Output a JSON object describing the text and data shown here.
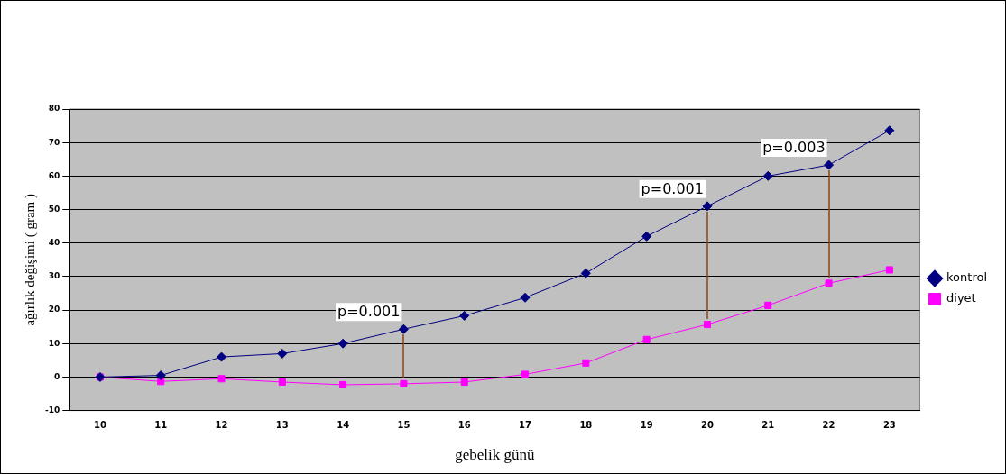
{
  "chart_data": {
    "type": "line",
    "xlabel": "gebelik günü",
    "ylabel": "ağırlık değişimi ( gram )",
    "categories": [
      "10",
      "11",
      "12",
      "13",
      "14",
      "15",
      "16",
      "17",
      "18",
      "19",
      "20",
      "21",
      "22",
      "23"
    ],
    "series": [
      {
        "name": "kontrol",
        "color": "#000080",
        "marker": "diamond",
        "values": [
          0,
          0.5,
          6,
          7,
          10,
          14.3,
          18.3,
          23.7,
          31,
          42,
          51,
          60,
          63.3,
          73.6
        ]
      },
      {
        "name": "diyet",
        "color": "#ff00ff",
        "marker": "square",
        "values": [
          0,
          -1.3,
          -0.5,
          -1.5,
          -2.3,
          -2,
          -1.5,
          0.8,
          4.2,
          11.2,
          15.7,
          21.4,
          28,
          32
        ]
      }
    ],
    "ylim": [
      -10,
      80
    ],
    "yticks": [
      -10,
      0,
      10,
      20,
      30,
      40,
      50,
      60,
      70,
      80
    ],
    "grid": "y",
    "legend": "right",
    "annotations": [
      {
        "text": "p=0.001",
        "x": "15",
        "y": 14.3
      },
      {
        "text": "p=0.001",
        "x": "20",
        "y": 51
      },
      {
        "text": "p=0.003",
        "x": "22",
        "y": 63.3
      }
    ]
  }
}
